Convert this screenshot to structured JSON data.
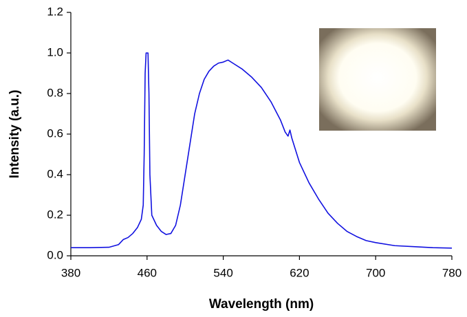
{
  "chart_data": {
    "type": "line",
    "x_label": "Wavelength (nm)",
    "y_label": "Intensity (a.u.)",
    "x": [
      380,
      400,
      420,
      430,
      435,
      440,
      445,
      450,
      454,
      456,
      457,
      458,
      459,
      460,
      461,
      462,
      463,
      465,
      470,
      475,
      480,
      485,
      490,
      495,
      500,
      505,
      510,
      515,
      520,
      525,
      530,
      535,
      540,
      545,
      550,
      560,
      570,
      580,
      590,
      600,
      605,
      608,
      610,
      612,
      620,
      630,
      640,
      650,
      660,
      670,
      680,
      690,
      700,
      720,
      740,
      760,
      780
    ],
    "values": [
      0.04,
      0.04,
      0.042,
      0.055,
      0.08,
      0.09,
      0.11,
      0.14,
      0.18,
      0.25,
      0.5,
      0.9,
      1.0,
      1.0,
      1.0,
      0.8,
      0.4,
      0.2,
      0.15,
      0.12,
      0.105,
      0.11,
      0.15,
      0.25,
      0.4,
      0.55,
      0.7,
      0.8,
      0.87,
      0.91,
      0.935,
      0.95,
      0.955,
      0.965,
      0.95,
      0.92,
      0.88,
      0.83,
      0.76,
      0.67,
      0.61,
      0.59,
      0.62,
      0.58,
      0.46,
      0.36,
      0.28,
      0.21,
      0.16,
      0.12,
      0.095,
      0.075,
      0.065,
      0.05,
      0.045,
      0.04,
      0.038
    ],
    "color": "#1010e0",
    "xlim": [
      380,
      780
    ],
    "xticks": [
      380,
      460,
      540,
      620,
      700,
      780
    ],
    "ylim": [
      0,
      1.2
    ],
    "yticks": [
      {
        "value": 0,
        "label": "0.0"
      },
      0.2,
      0.4,
      0.6,
      0.8,
      {
        "value": 1,
        "label": "1.0"
      },
      1.2
    ]
  }
}
